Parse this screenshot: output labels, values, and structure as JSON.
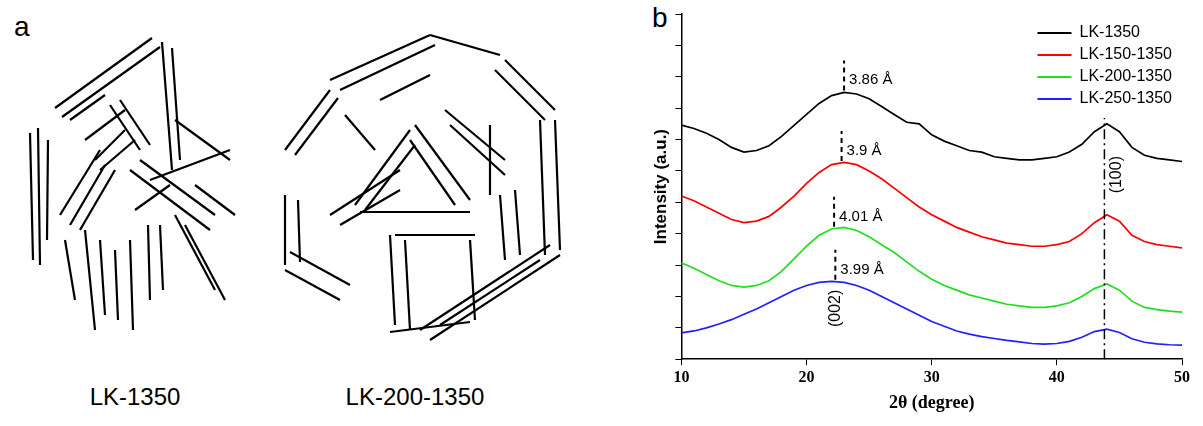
{
  "diagram": {
    "label": "a",
    "items": [
      {
        "label": "LK-1350"
      },
      {
        "label": "LK-200-1350"
      }
    ]
  },
  "chart_data": {
    "type": "line",
    "panel_label": "b",
    "x_label": "2θ (degree)",
    "y_label": "Intensity (a.u.)",
    "x": [
      10,
      11,
      12,
      13,
      14,
      15,
      16,
      17,
      18,
      19,
      20,
      21,
      22,
      23,
      24,
      25,
      26,
      27,
      28,
      29,
      30,
      31,
      32,
      33,
      34,
      35,
      36,
      37,
      38,
      39,
      40,
      41,
      42,
      43,
      44,
      45,
      46,
      47,
      48,
      49,
      50
    ],
    "series": [
      {
        "name": "LK-1350",
        "color": "#000000",
        "values": [
          74.6,
          73.5,
          72,
          70,
          67.5,
          66,
          66.5,
          68,
          71,
          74.5,
          78,
          81.5,
          84,
          85,
          84.5,
          83,
          80.5,
          78,
          75.5,
          75,
          71.5,
          69.5,
          68,
          66.5,
          66,
          64.5,
          64,
          63.5,
          63.5,
          64,
          64.5,
          66,
          68.5,
          72.5,
          75,
          72.5,
          67.5,
          65,
          64,
          63.5,
          63
        ]
      },
      {
        "name": "LK-150-1350",
        "color": "#ff0000",
        "values": [
          52,
          50.5,
          48.5,
          46.5,
          44.5,
          43.5,
          44,
          45.5,
          48.5,
          52,
          56,
          59.5,
          62,
          62.7,
          62,
          60,
          57.5,
          54.5,
          51.5,
          48.5,
          46,
          44,
          42,
          40.5,
          39,
          38,
          37,
          36.5,
          36,
          36,
          36.5,
          37.5,
          40,
          43.5,
          46,
          44,
          39.5,
          37.5,
          36.5,
          36,
          35.5
        ]
      },
      {
        "name": "LK-200-1350",
        "color": "#22dd22",
        "values": [
          30.7,
          29,
          27,
          25,
          23.5,
          23,
          23.5,
          25,
          28,
          32,
          36,
          39.5,
          41.5,
          42,
          41,
          39,
          36.5,
          34,
          31,
          28,
          25.5,
          23.5,
          22,
          20.5,
          19.5,
          18.5,
          17.5,
          17,
          16.5,
          16.5,
          17,
          18,
          20,
          22.5,
          24,
          22,
          18.5,
          16.5,
          15.8,
          15.3,
          15
        ]
      },
      {
        "name": "LK-250-1350",
        "color": "#2020ff",
        "values": [
          8.4,
          9,
          10,
          11.2,
          12.6,
          14.3,
          16,
          18,
          20,
          22,
          23.5,
          24.5,
          24.8,
          24.5,
          23.5,
          22,
          20,
          18,
          16,
          14,
          12,
          10.5,
          9,
          8,
          7.2,
          6.6,
          6,
          5.5,
          5,
          4.8,
          5,
          5.7,
          7,
          8.8,
          9.6,
          8.5,
          6.5,
          5.4,
          4.9,
          4.6,
          4.5
        ]
      }
    ],
    "xlim": [
      10,
      50
    ],
    "xticks": [
      10,
      20,
      30,
      40,
      50
    ],
    "ylim": [
      0,
      110
    ],
    "yticks": [
      0,
      10,
      20,
      30,
      40,
      50,
      60,
      70,
      80,
      90,
      100,
      110
    ],
    "tick_labels": "x",
    "grid": false,
    "legend": "top right",
    "annotations": [
      {
        "text": "3.86 Å",
        "x": 23.0,
        "series": "LK-1350"
      },
      {
        "text": "3.9 Å",
        "x": 22.8,
        "series": "LK-150-1350"
      },
      {
        "text": "4.01 Å",
        "x": 22.2,
        "series": "LK-200-1350"
      },
      {
        "text": "3.99 Å",
        "x": 22.3,
        "series": "LK-250-1350"
      }
    ],
    "reflections": [
      {
        "label": "(002)",
        "x": 22.3
      },
      {
        "label": "(100)",
        "x": 43.8,
        "line_style": "dashdot"
      }
    ]
  }
}
